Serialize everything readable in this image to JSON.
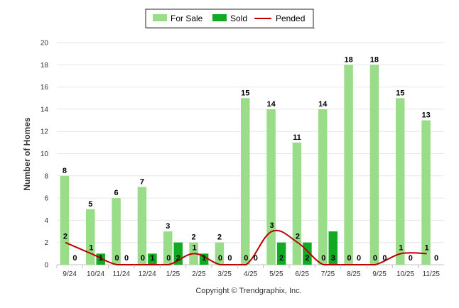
{
  "chart_data": {
    "type": "bar",
    "categories": [
      "9/24",
      "10/24",
      "11/24",
      "12/24",
      "1/25",
      "2/25",
      "3/25",
      "4/25",
      "5/25",
      "6/25",
      "7/25",
      "8/25",
      "9/25",
      "10/25",
      "11/25"
    ],
    "series": [
      {
        "name": "For Sale",
        "type": "bar",
        "color": "#99dd88",
        "values": [
          8,
          5,
          6,
          7,
          3,
          2,
          2,
          15,
          14,
          11,
          14,
          18,
          18,
          15,
          13
        ]
      },
      {
        "name": "Sold",
        "type": "bar",
        "color": "#11aa22",
        "values": [
          0,
          1,
          0,
          1,
          2,
          1,
          0,
          0,
          2,
          2,
          3,
          0,
          0,
          0,
          0
        ]
      },
      {
        "name": "Pended",
        "type": "line",
        "color": "#bb0000",
        "values": [
          2,
          1,
          0,
          0,
          0,
          1,
          0,
          0,
          3,
          2,
          0,
          0,
          0,
          1,
          1
        ]
      }
    ],
    "xlabel": "",
    "ylabel": "Number of Homes",
    "ylim": [
      0,
      20
    ],
    "yticks": [
      0,
      2,
      4,
      6,
      8,
      10,
      12,
      14,
      16,
      18,
      20
    ],
    "grid": true,
    "legend_position": "top-center",
    "credits": "Copyright © Trendgraphix, Inc."
  }
}
